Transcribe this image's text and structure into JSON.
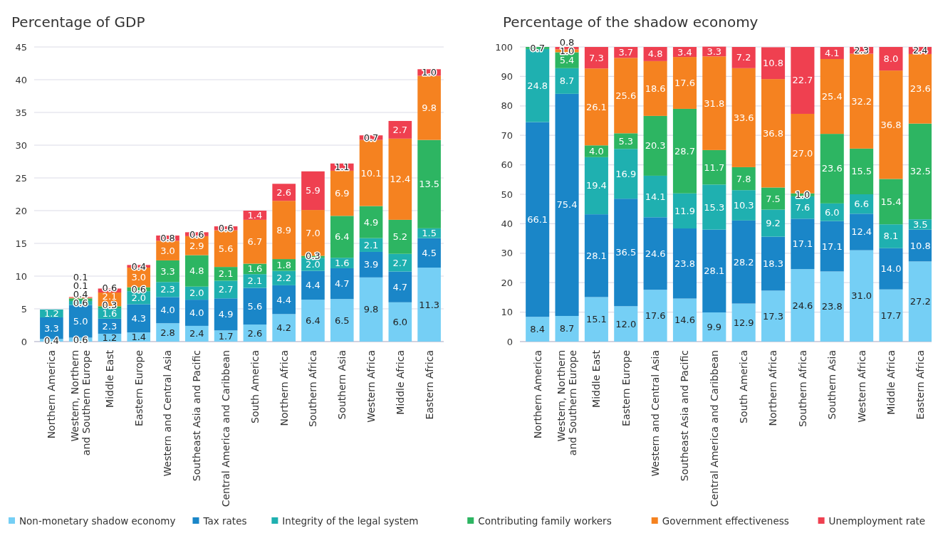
{
  "chart_data": [
    {
      "type": "bar",
      "stacked": true,
      "title": "Percentage of GDP",
      "categories": [
        "Northern America",
        "Western, Northern and Southern Europe",
        "Middle East",
        "Eastern Europe",
        "Western and Central Asia",
        "Southeast Asia and Pacific",
        "Central America and Caribbean",
        "South America",
        "Northern Africa",
        "Southern Africa",
        "Southern Asia",
        "Western Africa",
        "Middle Africa",
        "Eastern Africa"
      ],
      "series": [
        {
          "name": "Non-monetary shadow economy",
          "color": "#75cff5",
          "values": [
            0.4,
            0.6,
            1.2,
            1.4,
            2.8,
            2.4,
            1.7,
            2.6,
            4.2,
            6.4,
            6.5,
            9.8,
            6.0,
            11.3
          ],
          "value_labels": [
            "0.4",
            "0.6",
            "1.2",
            "1.4",
            "2.8",
            "2.4",
            "1.7",
            "2.6",
            "4.2",
            "6.4",
            "6.5",
            "9.8",
            "6.0",
            "11.3"
          ]
        },
        {
          "name": "Tax rates",
          "color": "#1a86c8",
          "values": [
            3.3,
            5.0,
            2.3,
            4.3,
            4.0,
            4.0,
            4.9,
            5.6,
            4.4,
            4.4,
            4.7,
            3.9,
            4.7,
            4.5
          ],
          "value_labels": [
            "3.3",
            "5.0",
            "2.3",
            "4.3",
            "4.0",
            "4.0",
            "4.9",
            "5.6",
            "4.4",
            "4.4",
            "4.7",
            "3.9",
            "4.7",
            "4.5"
          ]
        },
        {
          "name": "Integrity of the legal system",
          "color": "#1fb0b0",
          "values": [
            1.2,
            0.6,
            1.6,
            2.0,
            2.3,
            2.0,
            2.7,
            2.1,
            2.2,
            2.0,
            1.6,
            2.1,
            2.7,
            1.5
          ],
          "value_labels": [
            "1.2",
            "0.6",
            "1.6",
            "2.0",
            "2.3",
            "2.0",
            "2.7",
            "2.1",
            "2.2",
            "2.0",
            "1.6",
            "2.1",
            "2.7",
            "1.5"
          ]
        },
        {
          "name": "Contributing family workers",
          "color": "#2db562",
          "values": [
            null,
            0.4,
            0.3,
            0.6,
            3.3,
            4.8,
            2.1,
            1.6,
            1.8,
            0.3,
            6.4,
            4.9,
            5.2,
            13.5
          ],
          "value_labels": [
            null,
            "0.4",
            "0.3",
            "0.6",
            "3.3",
            "4.8",
            "2.1",
            "1.6",
            "1.8",
            "0.3",
            "6.4",
            "4.9",
            "5.2",
            "13.5"
          ]
        },
        {
          "name": "Government effectiveness",
          "color": "#f58220",
          "values": [
            null,
            0.1,
            2.1,
            3.0,
            3.0,
            2.9,
            5.6,
            6.7,
            8.9,
            7.0,
            6.9,
            10.1,
            12.4,
            9.8
          ],
          "value_labels": [
            null,
            "0.1",
            "2.1",
            "3.0",
            "3.0",
            "2.9",
            "5.6",
            "6.7",
            "8.9",
            "7.0",
            "6.9",
            "10.1",
            "12.4",
            "9.8"
          ]
        },
        {
          "name": "Unemployment rate",
          "color": "#ef4050",
          "values": [
            null,
            0.1,
            0.6,
            0.4,
            0.8,
            0.6,
            0.6,
            1.4,
            2.6,
            5.9,
            1.1,
            0.7,
            2.7,
            1.0
          ],
          "value_labels": [
            null,
            "0.1",
            "0.6",
            "0.4",
            "0.8",
            "0.6",
            "0.6",
            "1.4",
            "2.6",
            "5.9",
            "1.1",
            "0.7",
            "2.7",
            "1.0"
          ]
        }
      ],
      "ylim": [
        0,
        45
      ],
      "yticks": [
        0,
        5,
        10,
        15,
        20,
        25,
        30,
        35,
        40,
        45
      ],
      "grid": "y",
      "legend": "bottom"
    },
    {
      "type": "bar",
      "stacked": true,
      "title": "Percentage of the shadow economy",
      "categories": [
        "Northern America",
        "Western, Northern and Southern Europe",
        "Middle East",
        "Eastern Europe",
        "Western and Central Asia",
        "Southeast Asia and Pacific",
        "Central America and Caribbean",
        "South America",
        "Northern Africa",
        "Southern Africa",
        "Southern Asia",
        "Western Africa",
        "Middle Africa",
        "Eastern Africa"
      ],
      "series": [
        {
          "color": "#75cff5",
          "values": [
            8.4,
            8.7,
            15.1,
            12.0,
            17.6,
            14.6,
            9.9,
            12.9,
            17.3,
            24.6,
            23.8,
            31.0,
            17.7,
            27.2
          ],
          "value_labels": [
            "8.4",
            "8.7",
            "15.1",
            "12.0",
            "17.6",
            "14.6",
            "9.9",
            "12.9",
            "17.3",
            "24.6",
            "23.8",
            "31.0",
            "17.7",
            "27.2"
          ]
        },
        {
          "color": "#1a86c8",
          "values": [
            66.1,
            75.4,
            28.1,
            36.5,
            24.6,
            23.8,
            28.1,
            28.2,
            18.3,
            17.1,
            17.1,
            12.4,
            14.0,
            10.8
          ],
          "value_labels": [
            "66.1",
            "75.4",
            "28.1",
            "36.5",
            "24.6",
            "23.8",
            "28.1",
            "28.2",
            "18.3",
            "17.1",
            "17.1",
            "12.4",
            "14.0",
            "10.8"
          ]
        },
        {
          "color": "#1fb0b0",
          "values": [
            24.8,
            8.7,
            19.4,
            16.9,
            14.1,
            11.9,
            15.3,
            10.3,
            9.2,
            7.6,
            6.0,
            6.6,
            8.1,
            3.5
          ],
          "value_labels": [
            "24.8",
            "8.7",
            "19.4",
            "16.9",
            "14.1",
            "11.9",
            "15.3",
            "10.3",
            "9.2",
            "7.6",
            "6.0",
            "6.6",
            "8.1",
            "3.5"
          ]
        },
        {
          "color": "#2db562",
          "values": [
            0.7,
            5.4,
            4.0,
            5.3,
            20.3,
            28.7,
            11.7,
            7.8,
            7.5,
            1.0,
            23.6,
            15.5,
            15.4,
            32.5
          ],
          "value_labels": [
            "0.7",
            "5.4",
            "4.0",
            "5.3",
            "20.3",
            "28.7",
            "11.7",
            "7.8",
            "7.5",
            "1.0",
            "23.6",
            "15.5",
            "15.4",
            "32.5"
          ]
        },
        {
          "color": "#f58220",
          "values": [
            null,
            1.0,
            26.1,
            25.6,
            18.6,
            17.6,
            31.8,
            33.6,
            36.8,
            27.0,
            25.4,
            32.2,
            36.8,
            23.6
          ],
          "value_labels": [
            null,
            "1.0",
            "26.1",
            "25.6",
            "18.6",
            "17.6",
            "31.8",
            "33.6",
            "36.8",
            "27.0",
            "25.4",
            "32.2",
            "36.8",
            "23.6"
          ]
        },
        {
          "color": "#ef4050",
          "values": [
            null,
            0.8,
            7.3,
            3.7,
            4.8,
            3.4,
            3.3,
            7.2,
            10.8,
            22.7,
            4.1,
            2.3,
            8.0,
            2.4
          ],
          "value_labels": [
            null,
            "0.8",
            "7.3",
            "3.7",
            "4.8",
            "3.4",
            "3.3",
            "7.2",
            "10.8",
            "22.7",
            "4.1",
            "2.3",
            "8.0",
            "2.4"
          ]
        }
      ],
      "ylim": [
        0,
        100
      ],
      "yticks": [
        0,
        10,
        20,
        30,
        40,
        50,
        60,
        70,
        80,
        90,
        100
      ],
      "grid": "y"
    }
  ]
}
